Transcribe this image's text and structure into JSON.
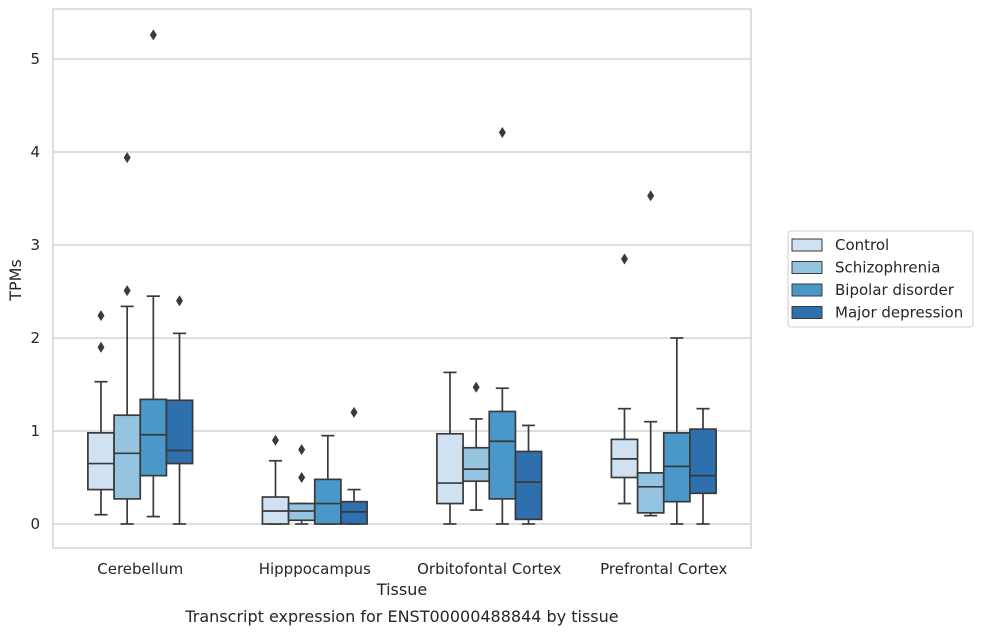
{
  "chart_data": {
    "type": "box",
    "caption": "Transcript expression for ENST00000488844 by tissue",
    "xlabel": "Tissue",
    "ylabel": "TPMs",
    "ylim": [
      -0.25,
      5.55
    ],
    "yticks": [
      "0",
      "1",
      "2",
      "3",
      "4",
      "5"
    ],
    "ytick_values": [
      0,
      1,
      2,
      3,
      4,
      5
    ],
    "grid": true,
    "legend_position": "right",
    "categories": [
      "Cerebellum",
      "Hipppocampus",
      "Orbitofontal Cortex",
      "Prefrontal Cortex"
    ],
    "series": [
      {
        "name": "Control",
        "color": "#d0e1f2",
        "boxes": [
          {
            "whislo": 0.1,
            "q1": 0.37,
            "med": 0.65,
            "q3": 0.98,
            "whishi": 1.53,
            "fliers": [
              1.9,
              2.24
            ]
          },
          {
            "whislo": 0.0,
            "q1": 0.0,
            "med": 0.14,
            "q3": 0.29,
            "whishi": 0.68,
            "fliers": [
              0.9
            ]
          },
          {
            "whislo": 0.0,
            "q1": 0.22,
            "med": 0.44,
            "q3": 0.97,
            "whishi": 1.63,
            "fliers": []
          },
          {
            "whislo": 0.22,
            "q1": 0.5,
            "med": 0.7,
            "q3": 0.91,
            "whishi": 1.24,
            "fliers": [
              2.85
            ]
          }
        ]
      },
      {
        "name": "Schizophrenia",
        "color": "#94c4df",
        "boxes": [
          {
            "whislo": 0.0,
            "q1": 0.27,
            "med": 0.76,
            "q3": 1.17,
            "whishi": 2.34,
            "fliers": [
              2.51,
              3.94
            ]
          },
          {
            "whislo": 0.0,
            "q1": 0.04,
            "med": 0.14,
            "q3": 0.22,
            "whishi": 0.22,
            "fliers": [
              0.5,
              0.8
            ]
          },
          {
            "whislo": 0.15,
            "q1": 0.46,
            "med": 0.59,
            "q3": 0.82,
            "whishi": 1.13,
            "fliers": [
              1.47
            ]
          },
          {
            "whislo": 0.09,
            "q1": 0.12,
            "med": 0.4,
            "q3": 0.55,
            "whishi": 1.1,
            "fliers": [
              3.53
            ]
          }
        ]
      },
      {
        "name": "Bipolar disorder",
        "color": "#4a98c9",
        "boxes": [
          {
            "whislo": 0.08,
            "q1": 0.52,
            "med": 0.96,
            "q3": 1.34,
            "whishi": 2.45,
            "fliers": [
              5.26
            ]
          },
          {
            "whislo": 0.0,
            "q1": 0.0,
            "med": 0.22,
            "q3": 0.48,
            "whishi": 0.95,
            "fliers": []
          },
          {
            "whislo": 0.0,
            "q1": 0.27,
            "med": 0.89,
            "q3": 1.21,
            "whishi": 1.46,
            "fliers": [
              4.21
            ]
          },
          {
            "whislo": 0.0,
            "q1": 0.24,
            "med": 0.62,
            "q3": 0.98,
            "whishi": 2.0,
            "fliers": []
          }
        ]
      },
      {
        "name": "Major depression",
        "color": "#2e6fad",
        "boxes": [
          {
            "whislo": 0.0,
            "q1": 0.65,
            "med": 0.79,
            "q3": 1.33,
            "whishi": 2.05,
            "fliers": [
              2.4
            ]
          },
          {
            "whislo": 0.0,
            "q1": 0.0,
            "med": 0.13,
            "q3": 0.24,
            "whishi": 0.37,
            "fliers": [
              1.2
            ]
          },
          {
            "whislo": 0.0,
            "q1": 0.05,
            "med": 0.45,
            "q3": 0.78,
            "whishi": 1.06,
            "fliers": []
          },
          {
            "whislo": 0.0,
            "q1": 0.33,
            "med": 0.52,
            "q3": 1.02,
            "whishi": 1.24,
            "fliers": []
          }
        ]
      }
    ]
  }
}
